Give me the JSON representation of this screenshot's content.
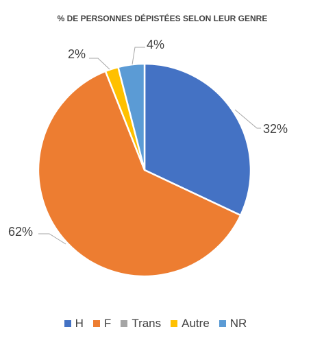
{
  "chart_data": {
    "type": "pie",
    "title": "% DE PERSONNES DÉPISTÉES SELON LEUR GENRE",
    "slices": [
      {
        "name": "H",
        "value": 32,
        "label": "32%",
        "color": "#4472C4"
      },
      {
        "name": "F",
        "value": 62,
        "label": "62%",
        "color": "#ED7D31"
      },
      {
        "name": "Trans",
        "value": 0,
        "label": "",
        "color": "#A5A5A5"
      },
      {
        "name": "Autre",
        "value": 2,
        "label": "2%",
        "color": "#FFC000"
      },
      {
        "name": "NR",
        "value": 4,
        "label": "4%",
        "color": "#5B9BD5"
      }
    ],
    "legend_position": "bottom",
    "start_angle": "top",
    "direction": "clockwise"
  }
}
